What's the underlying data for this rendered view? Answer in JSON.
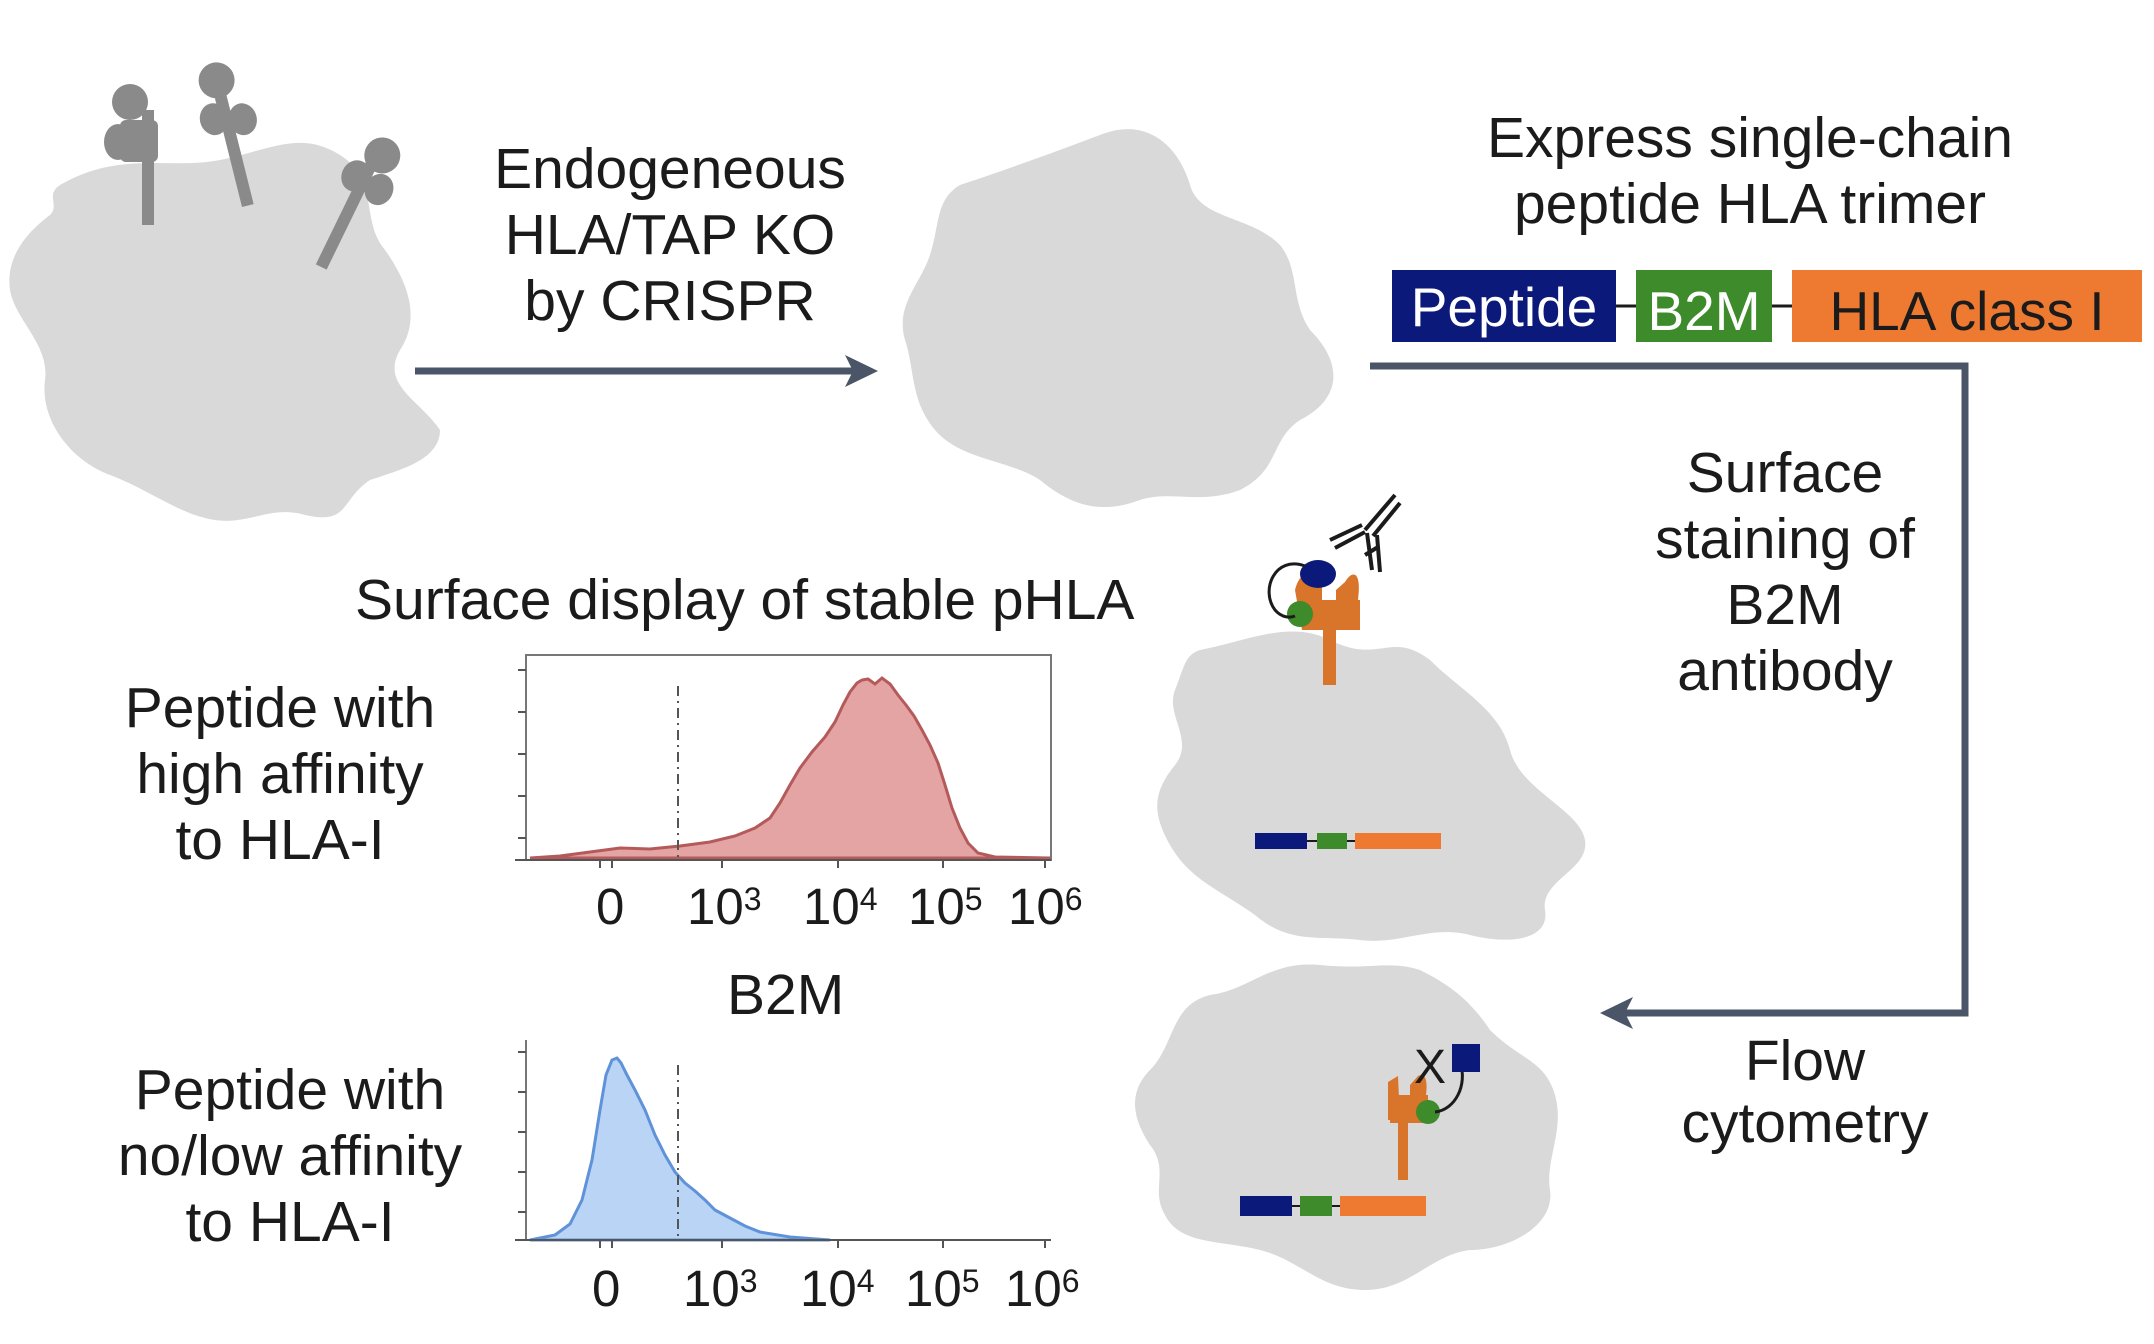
{
  "workflow": {
    "step1_label": [
      "Endogeneous",
      "HLA/TAP KO",
      "by CRISPR"
    ],
    "step2_label": [
      "Express single-chain",
      "peptide HLA trimer"
    ],
    "step3_label": [
      "Surface",
      "staining of",
      "B2M",
      "antibody"
    ],
    "step4_label": [
      "Flow",
      "cytometry"
    ]
  },
  "construct": {
    "segments": [
      {
        "label": "Peptide",
        "color": "#0b1a7a"
      },
      {
        "label": "B2M",
        "color": "#3d8b2a"
      },
      {
        "label": "HLA class I",
        "color": "#ee7a32"
      }
    ]
  },
  "colors": {
    "cell": "#d9d9d9",
    "receptor": "#8a8a8a",
    "arrow": "#4a5667",
    "hla": "#d9742b",
    "peptide": "#0b1a7a",
    "b2m": "#3d8b2a",
    "high_fill": "#e4a4a4",
    "high_line": "#b55a5a",
    "low_fill": "#b9d4f5",
    "low_line": "#5f92d8"
  },
  "panel": {
    "title": "Surface display of stable pHLA",
    "x_title": "B2M",
    "x_tick_labels": [
      "0",
      "10",
      "10",
      "10",
      "10"
    ],
    "x_tick_exponents": [
      "",
      "3",
      "4",
      "5",
      "6"
    ],
    "markers": {
      "blocked": "X"
    }
  },
  "chart_data": [
    {
      "type": "area",
      "label": [
        "Peptide with",
        "high affinity",
        "to HLA-I"
      ],
      "xscale": "biexponential",
      "x_ticks": [
        "0",
        "10^3",
        "10^4",
        "10^5",
        "10^6"
      ],
      "peak_x": "10^4"
    },
    {
      "type": "area",
      "label": [
        "Peptide with",
        "no/low affinity",
        "to HLA-I"
      ],
      "xscale": "biexponential",
      "x_ticks": [
        "0",
        "10^3",
        "10^4",
        "10^5",
        "10^6"
      ],
      "peak_x": "0"
    }
  ]
}
